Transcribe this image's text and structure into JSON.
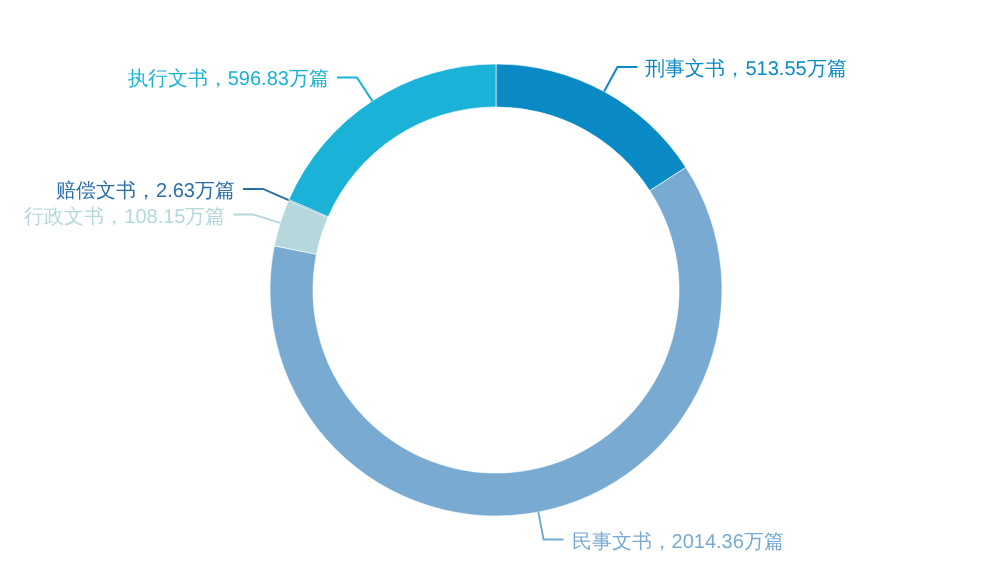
{
  "chart_data": {
    "type": "donut",
    "categories": [
      "刑事文书",
      "民事文书",
      "行政文书",
      "赔偿文书",
      "执行文书"
    ],
    "values": [
      513.55,
      2014.36,
      108.15,
      2.63,
      596.83
    ],
    "value_labels": [
      "513.55万篇",
      "2014.36万篇",
      "108.15万篇",
      "2.63万篇",
      "596.83万篇"
    ],
    "colors": [
      "#0a8ac4",
      "#79abd2",
      "#b4d8dc",
      "#2a6ea8",
      "#1bb2d8"
    ]
  }
}
